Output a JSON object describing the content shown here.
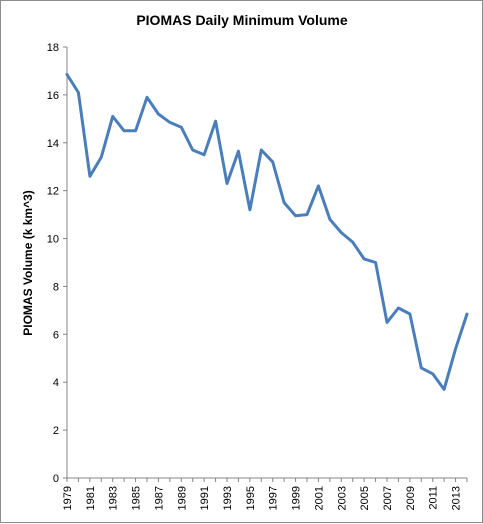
{
  "chart_data": {
    "type": "line",
    "title": "PIOMAS Daily Minimum Volume",
    "xlabel": "",
    "ylabel": "PIOMAS Volume (k km^3)",
    "ylim": [
      0,
      18
    ],
    "yticks": [
      0,
      2,
      4,
      6,
      8,
      10,
      12,
      14,
      16,
      18
    ],
    "xtick_labels": [
      "1979",
      "1981",
      "1983",
      "1985",
      "1987",
      "1989",
      "1991",
      "1993",
      "1995",
      "1997",
      "1999",
      "2001",
      "2003",
      "2005",
      "2007",
      "2009",
      "2011",
      "2013"
    ],
    "grid": false,
    "legend": "none",
    "line_color": "#4a7ebb",
    "series": [
      {
        "x": [
          1979,
          1980,
          1981,
          1982,
          1983,
          1984,
          1985,
          1986,
          1987,
          1988,
          1989,
          1990,
          1991,
          1992,
          1993,
          1994,
          1995,
          1996,
          1997,
          1998,
          1999,
          2000,
          2001,
          2002,
          2003,
          2004,
          2005,
          2006,
          2007,
          2008,
          2009,
          2010,
          2011,
          2012,
          2013,
          2014
        ],
        "values": [
          16.85,
          16.1,
          12.6,
          13.4,
          15.1,
          14.5,
          14.5,
          15.9,
          15.2,
          14.85,
          14.65,
          13.7,
          13.5,
          14.9,
          12.3,
          13.65,
          11.2,
          13.7,
          13.2,
          11.5,
          10.95,
          11.0,
          12.2,
          10.8,
          10.25,
          9.85,
          9.15,
          9.0,
          6.5,
          7.1,
          6.85,
          4.6,
          4.35,
          3.7,
          5.4,
          6.85
        ]
      }
    ]
  }
}
